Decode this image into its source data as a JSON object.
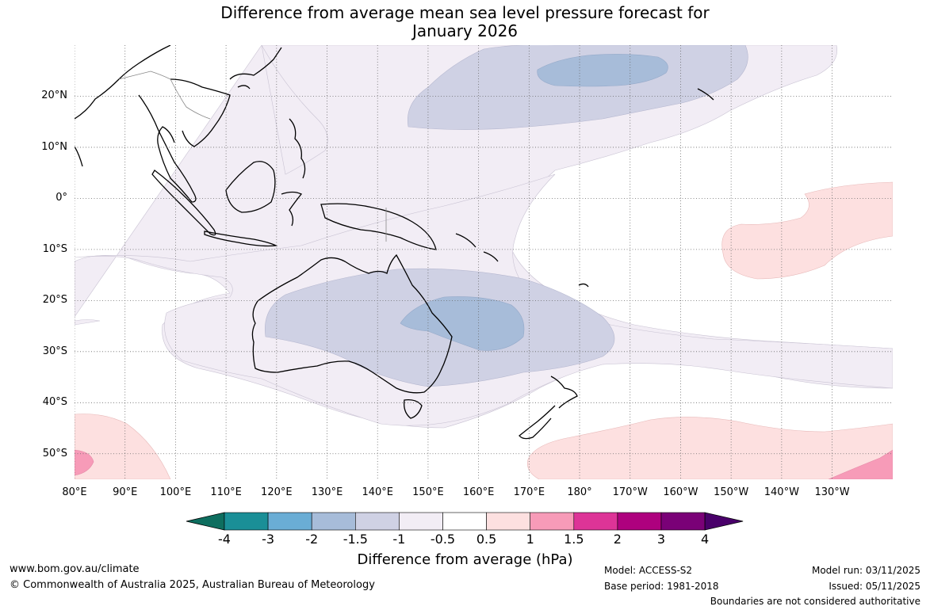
{
  "title_line1": "Difference from average mean sea level pressure forecast for",
  "title_line2": "January 2026",
  "lat_labels": [
    "20°N",
    "10°N",
    "0°",
    "10°S",
    "20°S",
    "30°S",
    "40°S",
    "50°S"
  ],
  "lon_labels": [
    "80°E",
    "90°E",
    "100°E",
    "110°E",
    "120°E",
    "130°E",
    "140°E",
    "150°E",
    "160°E",
    "170°E",
    "180°",
    "170°W",
    "160°W",
    "150°W",
    "140°W",
    "130°W"
  ],
  "colorbar": {
    "ticks": [
      "-4",
      "-3",
      "-2",
      "-1.5",
      "-1",
      "-0.5",
      "0.5",
      "1",
      "1.5",
      "2",
      "3",
      "4"
    ],
    "colors": [
      "#0e6e5f",
      "#1a8f97",
      "#6aadd5",
      "#a7bcd9",
      "#cfd1e4",
      "#f2edf5",
      "#ffffff",
      "#fde0e0",
      "#f79bb8",
      "#dd3497",
      "#ae017e",
      "#7a0177",
      "#49006a"
    ],
    "label": "Difference from average (hPa)"
  },
  "footer": {
    "website": "www.bom.gov.au/climate",
    "copyright": "© Commonwealth of Australia 2025, Australian Bureau of Meteorology",
    "model": "Model: ACCESS-S2",
    "base_period": "Base period: 1981-2018",
    "model_run": "Model run: 03/11/2025",
    "issued": "Issued: 05/11/2025",
    "disclaimer": "Boundaries are not considered authoritative"
  },
  "map": {
    "domain": {
      "lon": [
        80,
        242
      ],
      "lat": [
        -55,
        30
      ]
    },
    "projection": "equirectangular",
    "anomaly_regions": [
      {
        "level": "-1 to -0.5",
        "area": "tropical Pacific band and Southern Ocean band"
      },
      {
        "level": "-1.5 to -1",
        "area": "central Australia and North Pacific"
      },
      {
        "level": "-2 to -1.5",
        "area": "eastern Australia / Coral Sea and North Pacific core"
      },
      {
        "level": "0.5 to 1",
        "area": "southern Indian Ocean, southern Pacific, eastern equatorial Pacific"
      },
      {
        "level": "1 to 1.5",
        "area": "southwest corner and southeast corner"
      }
    ]
  }
}
